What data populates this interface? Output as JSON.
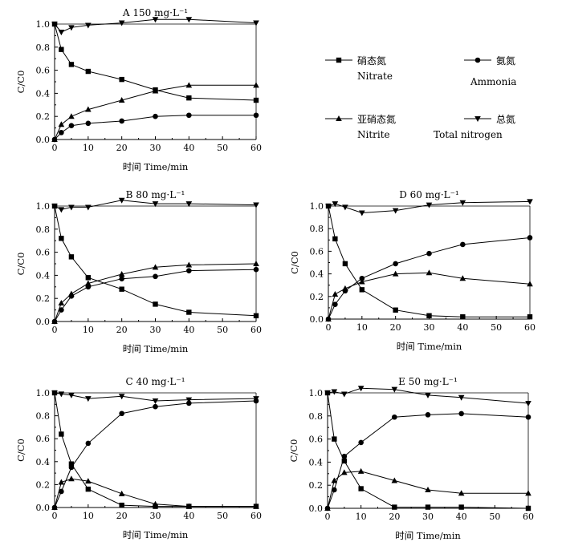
{
  "chart_data": [
    {
      "id": "A",
      "type": "line",
      "title": "A 150 mg·L⁻¹",
      "xlabel": "时间 Time/min",
      "ylabel": "C/C0",
      "xlim": [
        0,
        60
      ],
      "ylim": [
        0,
        1.0
      ],
      "xticks": [
        "0",
        "10",
        "20",
        "30",
        "40",
        "50",
        "60"
      ],
      "yticks": [
        "0.0",
        "0.2",
        "0.4",
        "0.6",
        "0.8",
        "1.0"
      ],
      "x": [
        0,
        2,
        5,
        10,
        20,
        30,
        40,
        60
      ],
      "series": [
        {
          "key": "nitrate",
          "name": "硝态氮 Nitrate",
          "values": [
            1.0,
            0.78,
            0.65,
            0.59,
            0.52,
            0.43,
            0.36,
            0.34
          ]
        },
        {
          "key": "ammonia",
          "name": "氨氮 Ammonia",
          "values": [
            0.0,
            0.06,
            0.12,
            0.14,
            0.16,
            0.2,
            0.21,
            0.21
          ]
        },
        {
          "key": "nitrite",
          "name": "亚硝态氮 Nitrite",
          "values": [
            0.0,
            0.13,
            0.2,
            0.26,
            0.34,
            0.42,
            0.47,
            0.47
          ]
        },
        {
          "key": "total",
          "name": "总氮 Total nitrogen",
          "values": [
            1.0,
            0.93,
            0.97,
            0.99,
            1.01,
            1.04,
            1.04,
            1.01
          ]
        }
      ]
    },
    {
      "id": "B",
      "type": "line",
      "title": "B 80 mg·L⁻¹",
      "xlabel": "时间 Time/min",
      "ylabel": "C/C0",
      "xlim": [
        0,
        60
      ],
      "ylim": [
        0,
        1.0
      ],
      "xticks": [
        "0",
        "10",
        "20",
        "30",
        "40",
        "50",
        "60"
      ],
      "yticks": [
        "0.0",
        "0.2",
        "0.4",
        "0.6",
        "0.8",
        "1.0"
      ],
      "x": [
        0,
        2,
        5,
        10,
        20,
        30,
        40,
        60
      ],
      "series": [
        {
          "key": "nitrate",
          "name": "硝态氮 Nitrate",
          "values": [
            1.0,
            0.72,
            0.56,
            0.38,
            0.28,
            0.15,
            0.08,
            0.05
          ]
        },
        {
          "key": "ammonia",
          "name": "氨氮 Ammonia",
          "values": [
            0.0,
            0.1,
            0.22,
            0.3,
            0.37,
            0.39,
            0.44,
            0.45
          ]
        },
        {
          "key": "nitrite",
          "name": "亚硝态氮 Nitrite",
          "values": [
            0.0,
            0.16,
            0.24,
            0.33,
            0.41,
            0.47,
            0.49,
            0.5
          ]
        },
        {
          "key": "total",
          "name": "总氮 Total nitrogen",
          "values": [
            1.0,
            0.97,
            0.99,
            0.99,
            1.05,
            1.02,
            1.02,
            1.01
          ]
        }
      ]
    },
    {
      "id": "D",
      "type": "line",
      "title": "D 60 mg·L⁻¹",
      "xlabel": "时间 Time/min",
      "ylabel": "C/C0",
      "xlim": [
        0,
        60
      ],
      "ylim": [
        0,
        1.0
      ],
      "xticks": [
        "0",
        "10",
        "20",
        "30",
        "40",
        "50",
        "60"
      ],
      "yticks": [
        "0.0",
        "0.2",
        "0.4",
        "0.6",
        "0.8",
        "1.0"
      ],
      "x": [
        0,
        2,
        5,
        10,
        20,
        30,
        40,
        60
      ],
      "series": [
        {
          "key": "nitrate",
          "name": "硝态氮 Nitrate",
          "values": [
            1.0,
            0.71,
            0.49,
            0.26,
            0.08,
            0.03,
            0.02,
            0.02
          ]
        },
        {
          "key": "ammonia",
          "name": "氨氮 Ammonia",
          "values": [
            0.0,
            0.13,
            0.25,
            0.36,
            0.49,
            0.58,
            0.66,
            0.72
          ]
        },
        {
          "key": "nitrite",
          "name": "亚硝态氮 Nitrite",
          "values": [
            0.0,
            0.22,
            0.27,
            0.33,
            0.4,
            0.41,
            0.36,
            0.31
          ]
        },
        {
          "key": "total",
          "name": "总氮 Total nitrogen",
          "values": [
            1.0,
            1.02,
            0.99,
            0.94,
            0.96,
            1.01,
            1.03,
            1.04
          ]
        }
      ]
    },
    {
      "id": "C",
      "type": "line",
      "title": "C 40 mg·L⁻¹",
      "xlabel": "时间 Time/min",
      "ylabel": "C/C0",
      "xlim": [
        0,
        60
      ],
      "ylim": [
        0,
        1.0
      ],
      "xticks": [
        "0",
        "10",
        "20",
        "30",
        "40",
        "50",
        "60"
      ],
      "yticks": [
        "0.0",
        "0.2",
        "0.4",
        "0.6",
        "0.8",
        "1.0"
      ],
      "x": [
        0,
        2,
        5,
        10,
        20,
        30,
        40,
        60
      ],
      "series": [
        {
          "key": "nitrate",
          "name": "硝态氮 Nitrate",
          "values": [
            1.0,
            0.64,
            0.38,
            0.16,
            0.02,
            0.01,
            0.01,
            0.01
          ]
        },
        {
          "key": "ammonia",
          "name": "氨氮 Ammonia",
          "values": [
            0.0,
            0.14,
            0.35,
            0.56,
            0.82,
            0.88,
            0.91,
            0.93
          ]
        },
        {
          "key": "nitrite",
          "name": "亚硝态氮 Nitrite",
          "values": [
            0.0,
            0.22,
            0.25,
            0.23,
            0.12,
            0.03,
            0.01,
            0.01
          ]
        },
        {
          "key": "total",
          "name": "总氮 Total nitrogen",
          "values": [
            1.0,
            0.99,
            0.98,
            0.95,
            0.97,
            0.93,
            0.94,
            0.95
          ]
        }
      ]
    },
    {
      "id": "E",
      "type": "line",
      "title": "E 50 mg·L⁻¹",
      "xlabel": "时间 Time/min",
      "ylabel": "C/C0",
      "xlim": [
        0,
        60
      ],
      "ylim": [
        0,
        1.0
      ],
      "xticks": [
        "0",
        "10",
        "20",
        "30",
        "40",
        "50",
        "60"
      ],
      "yticks": [
        "0.0",
        "0.2",
        "0.4",
        "0.6",
        "0.8",
        "1.0"
      ],
      "x": [
        0,
        2,
        5,
        10,
        20,
        30,
        40,
        60
      ],
      "series": [
        {
          "key": "nitrate",
          "name": "硝态氮 Nitrate",
          "values": [
            1.0,
            0.6,
            0.41,
            0.17,
            0.01,
            0.01,
            0.01,
            0.0
          ]
        },
        {
          "key": "ammonia",
          "name": "氨氮 Ammonia",
          "values": [
            0.0,
            0.16,
            0.45,
            0.57,
            0.79,
            0.81,
            0.82,
            0.79
          ]
        },
        {
          "key": "nitrite",
          "name": "亚硝态氮 Nitrite",
          "values": [
            0.0,
            0.24,
            0.31,
            0.32,
            0.24,
            0.16,
            0.13,
            0.13
          ]
        },
        {
          "key": "total",
          "name": "总氮 Total nitrogen",
          "values": [
            1.0,
            1.01,
            0.99,
            1.04,
            1.03,
            0.98,
            0.96,
            0.91
          ]
        }
      ]
    }
  ],
  "legend": [
    {
      "key": "nitrate",
      "cn": "硝态氮",
      "en": "Nitrate",
      "marker": "square"
    },
    {
      "key": "ammonia",
      "cn": "氨氮",
      "en": "Ammonia",
      "marker": "circle"
    },
    {
      "key": "nitrite",
      "cn": "亚硝态氮",
      "en": "Nitrite",
      "marker": "triangle-up"
    },
    {
      "key": "total",
      "cn": "总氮",
      "en": "Total nitrogen",
      "marker": "triangle-down"
    }
  ],
  "colors": {
    "line": "#000000",
    "background": "#ffffff"
  }
}
